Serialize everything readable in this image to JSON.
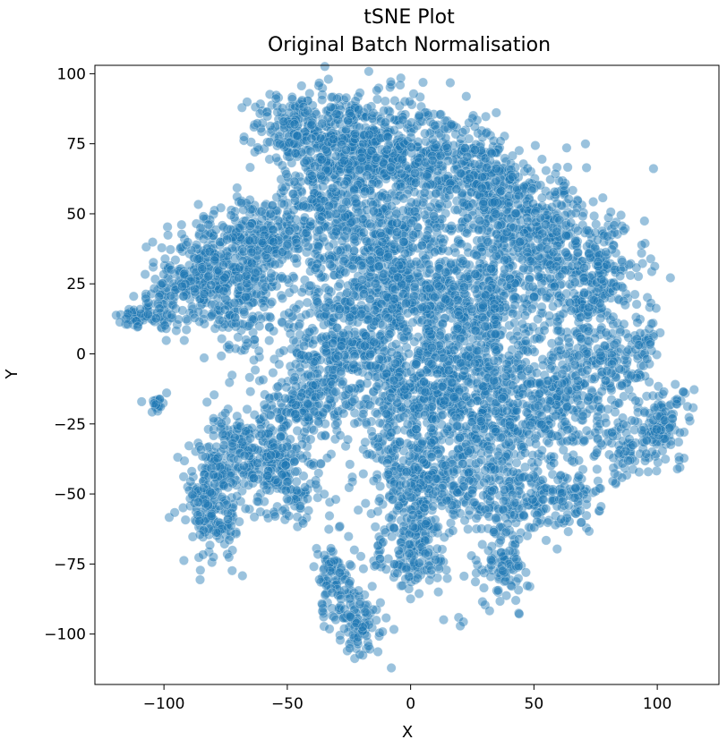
{
  "chart_data": {
    "type": "scatter",
    "title": "tSNE Plot",
    "subtitle": "Original Batch Normalisation",
    "xlabel": "X",
    "ylabel": "Y",
    "xlim": [
      -128,
      125
    ],
    "ylim": [
      -118,
      103
    ],
    "xticks": [
      -100,
      -50,
      0,
      50,
      100
    ],
    "yticks": [
      100,
      75,
      50,
      25,
      0,
      -25,
      -50,
      -75,
      -100
    ],
    "xtick_labels": [
      "−100",
      "−50",
      "0",
      "50",
      "100"
    ],
    "ytick_labels": [
      "100",
      "75",
      "50",
      "25",
      "0",
      "−25",
      "−50",
      "−75",
      "−100"
    ],
    "grid": false,
    "legend": "none",
    "marker_color": "#1f77b4",
    "marker_alpha": 0.45,
    "clusters": [
      {
        "cx": -112,
        "cy": 13,
        "sx": 4,
        "sy": 2,
        "n": 40
      },
      {
        "cx": -102,
        "cy": 16,
        "sx": 4,
        "sy": 4,
        "n": 50
      },
      {
        "cx": -103,
        "cy": -18,
        "sx": 1.5,
        "sy": 2,
        "n": 20
      },
      {
        "cx": -85,
        "cy": 28,
        "sx": 9,
        "sy": 10,
        "n": 280
      },
      {
        "cx": -65,
        "cy": 25,
        "sx": 9,
        "sy": 14,
        "n": 280
      },
      {
        "cx": -60,
        "cy": 40,
        "sx": 10,
        "sy": 8,
        "n": 150
      },
      {
        "cx": -48,
        "cy": 82,
        "sx": 8,
        "sy": 6,
        "n": 120
      },
      {
        "cx": -30,
        "cy": 75,
        "sx": 12,
        "sy": 10,
        "n": 350
      },
      {
        "cx": -10,
        "cy": 72,
        "sx": 10,
        "sy": 10,
        "n": 280
      },
      {
        "cx": 15,
        "cy": 68,
        "sx": 12,
        "sy": 10,
        "n": 320
      },
      {
        "cx": 35,
        "cy": 55,
        "sx": 10,
        "sy": 10,
        "n": 250
      },
      {
        "cx": 55,
        "cy": 40,
        "sx": 12,
        "sy": 12,
        "n": 320
      },
      {
        "cx": 75,
        "cy": 25,
        "sx": 10,
        "sy": 12,
        "n": 260
      },
      {
        "cx": -35,
        "cy": 50,
        "sx": 10,
        "sy": 10,
        "n": 220
      },
      {
        "cx": -20,
        "cy": 25,
        "sx": 12,
        "sy": 12,
        "n": 280
      },
      {
        "cx": -5,
        "cy": 40,
        "sx": 10,
        "sy": 10,
        "n": 200
      },
      {
        "cx": 10,
        "cy": 20,
        "sx": 12,
        "sy": 12,
        "n": 300
      },
      {
        "cx": 35,
        "cy": 15,
        "sx": 12,
        "sy": 12,
        "n": 300
      },
      {
        "cx": -35,
        "cy": 0,
        "sx": 8,
        "sy": 10,
        "n": 160
      },
      {
        "cx": -45,
        "cy": -18,
        "sx": 8,
        "sy": 6,
        "n": 150
      },
      {
        "cx": -15,
        "cy": -5,
        "sx": 10,
        "sy": 14,
        "n": 250
      },
      {
        "cx": 10,
        "cy": -10,
        "sx": 12,
        "sy": 12,
        "n": 350
      },
      {
        "cx": 35,
        "cy": -20,
        "sx": 12,
        "sy": 12,
        "n": 320
      },
      {
        "cx": 60,
        "cy": -15,
        "sx": 10,
        "sy": 10,
        "n": 220
      },
      {
        "cx": 80,
        "cy": -5,
        "sx": 8,
        "sy": 8,
        "n": 120
      },
      {
        "cx": 102,
        "cy": -25,
        "sx": 6,
        "sy": 7,
        "n": 120
      },
      {
        "cx": 87,
        "cy": -35,
        "sx": 6,
        "sy": 6,
        "n": 70
      },
      {
        "cx": 93,
        "cy": 2,
        "sx": 4,
        "sy": 5,
        "n": 40
      },
      {
        "cx": -65,
        "cy": -35,
        "sx": 10,
        "sy": 8,
        "n": 220
      },
      {
        "cx": -80,
        "cy": -55,
        "sx": 6,
        "sy": 10,
        "n": 200
      },
      {
        "cx": -50,
        "cy": -45,
        "sx": 8,
        "sy": 8,
        "n": 150
      },
      {
        "cx": 0,
        "cy": -45,
        "sx": 8,
        "sy": 12,
        "n": 250
      },
      {
        "cx": 20,
        "cy": -45,
        "sx": 10,
        "sy": 10,
        "n": 200
      },
      {
        "cx": 45,
        "cy": -50,
        "sx": 8,
        "sy": 8,
        "n": 140
      },
      {
        "cx": 65,
        "cy": -50,
        "sx": 6,
        "sy": 6,
        "n": 90
      },
      {
        "cx": 2,
        "cy": -70,
        "sx": 6,
        "sy": 8,
        "n": 130
      },
      {
        "cx": 38,
        "cy": -75,
        "sx": 5,
        "sy": 8,
        "n": 100
      },
      {
        "cx": -30,
        "cy": -80,
        "sx": 5,
        "sy": 8,
        "n": 100
      },
      {
        "cx": -20,
        "cy": -97,
        "sx": 5,
        "sy": 6,
        "n": 90
      },
      {
        "cx": -12,
        "cy": -72,
        "sx": 2,
        "sy": 3,
        "n": 15
      },
      {
        "cx": 20,
        "cy": -96,
        "sx": 1,
        "sy": 1,
        "n": 3
      }
    ]
  }
}
